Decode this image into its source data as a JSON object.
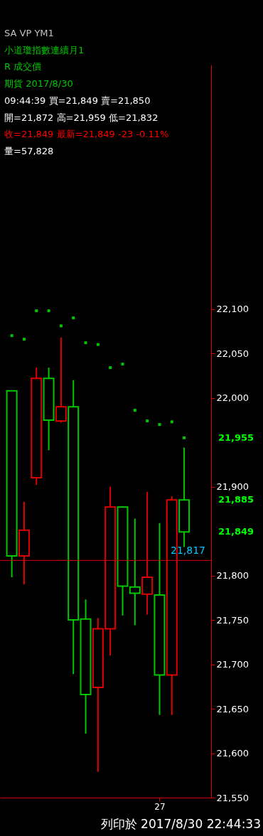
{
  "chart_data": {
    "type": "candlestick",
    "categories": [
      null,
      null,
      null,
      null,
      null,
      null,
      null,
      null,
      null,
      null,
      null,
      null,
      "27",
      null,
      null
    ],
    "ohlc": [
      [
        22008,
        22008,
        21798,
        21822
      ],
      [
        21822,
        21883,
        21790,
        21851
      ],
      [
        21910,
        22034,
        21902,
        22022
      ],
      [
        22022,
        22034,
        21941,
        21975
      ],
      [
        21974,
        22068,
        21972,
        21990
      ],
      [
        21990,
        22020,
        21689,
        21750
      ],
      [
        21751,
        21773,
        21622,
        21666
      ],
      [
        21674,
        21752,
        21579,
        21740
      ],
      [
        21740,
        21900,
        21710,
        21877
      ],
      [
        21877,
        21878,
        21755,
        21788
      ],
      [
        21787,
        21864,
        21744,
        21780
      ],
      [
        21779,
        21894,
        21756,
        21798
      ],
      [
        21778,
        21859,
        21643,
        21688
      ],
      [
        21688,
        21889,
        21643,
        21885
      ],
      [
        21885,
        21944,
        21832,
        21849
      ]
    ],
    "colors": [
      "#00c800",
      "#e00000",
      "#e00000",
      "#00c800",
      "#e00000",
      "#00c800",
      "#00c800",
      "#e00000",
      "#e00000",
      "#00c800",
      "#00c800",
      "#e00000",
      "#00c800",
      "#e00000",
      "#00c800"
    ],
    "series": [
      {
        "type": "scatter",
        "color": "#00c800",
        "marker": "square",
        "values": [
          22070,
          22066,
          22098,
          22098,
          22081,
          22090,
          22062,
          22060,
          22034,
          22038,
          21986,
          21974,
          21970,
          21973,
          21955
        ]
      }
    ],
    "ylim": [
      21550,
      22375
    ],
    "yticks": [
      {
        "value": 21550,
        "label": "21,550"
      },
      {
        "value": 21600,
        "label": "21,600"
      },
      {
        "value": 21650,
        "label": "21,650"
      },
      {
        "value": 21700,
        "label": "21,700"
      },
      {
        "value": 21750,
        "label": "21,750"
      },
      {
        "value": 21800,
        "label": "21,800"
      },
      {
        "value": 21900,
        "label": "21,900"
      },
      {
        "value": 22000,
        "label": "22,000"
      },
      {
        "value": 22050,
        "label": "22,050"
      },
      {
        "value": 22100,
        "label": "22,100"
      }
    ],
    "ref_lines": [
      {
        "axis": "y",
        "value": 21817,
        "label": "21,817",
        "color": "#e00000"
      }
    ],
    "annotations": [
      "SA  VP  YM1",
      "小道瓊指數連續月1",
      "R  成交價",
      "期貨  2017/8/30",
      "09:44:39 買=21,849 賣=21,850",
      "開=21,872 高=21,959 低=21,832",
      "收=21,849 最新=21,849 -23 -0.11%",
      "量=57,828",
      "21,955",
      "21,885",
      "21,849",
      "列印於 2017/8/30 22:44:33"
    ],
    "grid": false
  }
}
